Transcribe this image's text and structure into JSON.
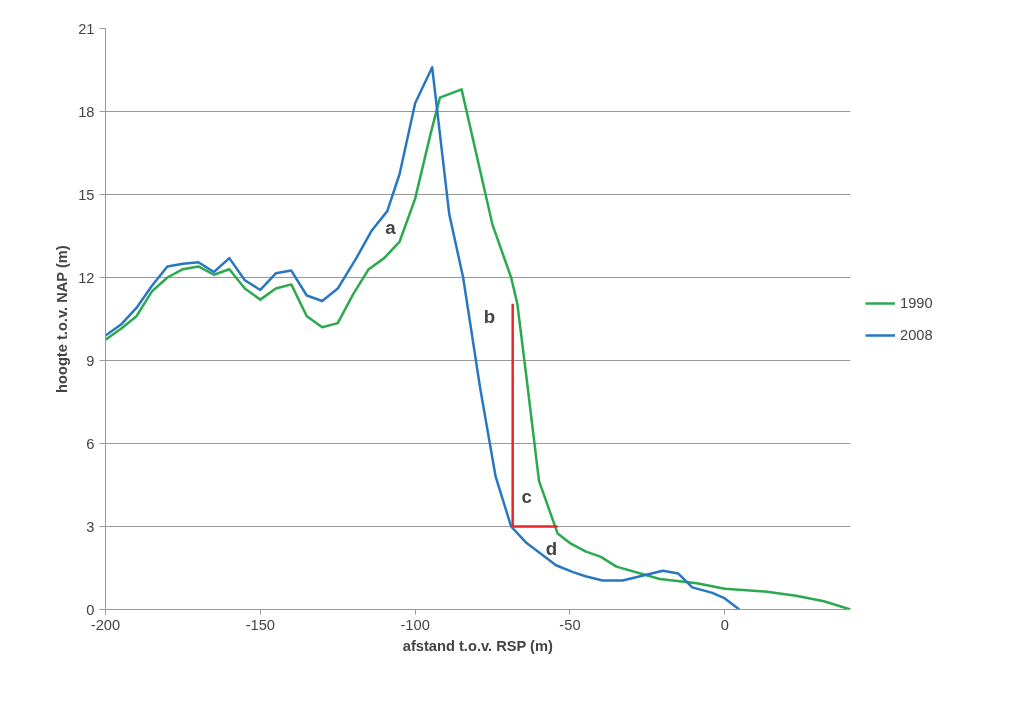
{
  "chart_data": {
    "type": "line",
    "xlabel": "afstand t.o.v. RSP (m)",
    "ylabel": "hoogte t.o.v. NAP (m)",
    "xlim": [
      -200,
      40.6
    ],
    "xticks": [
      -200,
      -150,
      -100,
      -50,
      0
    ],
    "ylim": [
      0,
      21
    ],
    "yticks": [
      0,
      3,
      6,
      9,
      12,
      15,
      18,
      21
    ],
    "grid": "y",
    "legend": "right",
    "marker": "none",
    "line_style": "solid",
    "series": [
      {
        "name": "1990",
        "color": "#2ca94f",
        "x": [
          -200,
          -195,
          -190,
          -185,
          -180,
          -175,
          -170,
          -165,
          -160,
          -155,
          -150,
          -145,
          -140,
          -135,
          -130,
          -125,
          -120,
          -115,
          -110,
          -105,
          -100,
          -95,
          -92,
          -85,
          -75,
          -69,
          -67,
          -64,
          -60,
          -54,
          -50,
          -45,
          -40,
          -35,
          -21,
          -9,
          0,
          13,
          23,
          32,
          40.6
        ],
        "values": [
          9.75,
          10.15,
          10.6,
          11.5,
          12.0,
          12.3,
          12.4,
          12.1,
          12.3,
          11.6,
          11.2,
          11.6,
          11.75,
          10.6,
          10.2,
          10.35,
          11.4,
          12.3,
          12.7,
          13.3,
          14.85,
          17.2,
          18.5,
          18.8,
          13.9,
          12.0,
          11.05,
          8.35,
          4.65,
          2.75,
          2.4,
          2.1,
          1.9,
          1.55,
          1.1,
          0.95,
          0.75,
          0.65,
          0.5,
          0.3,
          0
        ]
      },
      {
        "name": "2008",
        "color": "#2877c0",
        "x": [
          -200,
          -195,
          -190,
          -185,
          -180,
          -175,
          -170,
          -165,
          -160,
          -155,
          -150,
          -145,
          -140,
          -135,
          -130,
          -125,
          -119,
          -114,
          -109,
          -105,
          -100,
          -94.5,
          -89,
          -84.5,
          -79,
          -74,
          -69,
          -64,
          -54.5,
          -49,
          -45,
          -39.5,
          -33,
          -20,
          -15,
          -10.5,
          -4,
          0,
          4.7
        ],
        "values": [
          9.9,
          10.3,
          10.9,
          11.7,
          12.4,
          12.5,
          12.55,
          12.2,
          12.7,
          11.9,
          11.55,
          12.15,
          12.25,
          11.35,
          11.15,
          11.6,
          12.7,
          13.7,
          14.4,
          15.75,
          18.3,
          19.6,
          14.3,
          12.0,
          8.0,
          4.8,
          3.0,
          2.4,
          1.6,
          1.35,
          1.2,
          1.05,
          1.05,
          1.4,
          1.3,
          0.8,
          0.6,
          0.4,
          0
        ]
      },
      {
        "color": "#e8262a",
        "x": [
          -68.5,
          -68.5,
          -54
        ],
        "values": [
          11.05,
          3,
          3
        ]
      }
    ],
    "annotations": [
      "a",
      "b",
      "c",
      "d"
    ]
  }
}
